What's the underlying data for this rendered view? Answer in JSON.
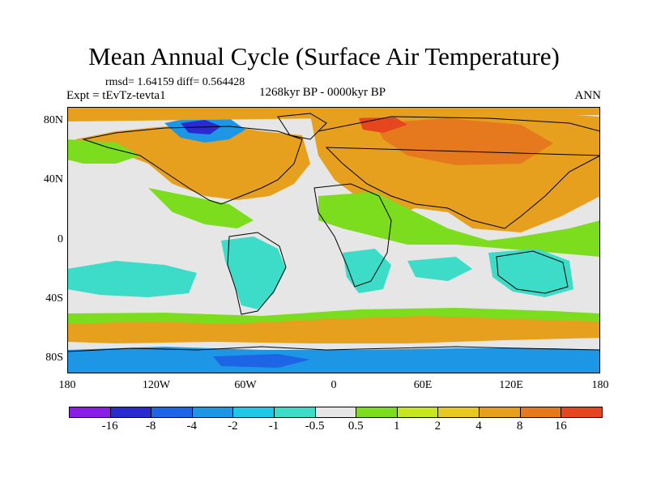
{
  "title": "Mean Annual Cycle (Surface Air Temperature)",
  "stats_text": "rmsd= 1.64159 diff= 0.564428",
  "expt_text": "Expt = tEvTz-tevta1",
  "period_text": "1268kyr BP - 0000kyr BP",
  "season_text": "ANN",
  "y_ticks": [
    "80N",
    "40N",
    "0",
    "40S",
    "80S"
  ],
  "x_ticks": [
    "180",
    "120W",
    "60W",
    "0",
    "60E",
    "120E",
    "180"
  ],
  "colorbar": {
    "colors": [
      "#8a1ee6",
      "#2a2ad0",
      "#1e64e6",
      "#1e96e6",
      "#1ec8e6",
      "#3cdcc8",
      "#e6e6e6",
      "#7cdc1e",
      "#c8e61e",
      "#e6c81e",
      "#e6a01e",
      "#e6781e",
      "#e6461e"
    ],
    "labels": [
      "-16",
      "-8",
      "-4",
      "-2",
      "-1",
      "-0.5",
      "0.5",
      "1",
      "2",
      "4",
      "8",
      "16"
    ]
  }
}
